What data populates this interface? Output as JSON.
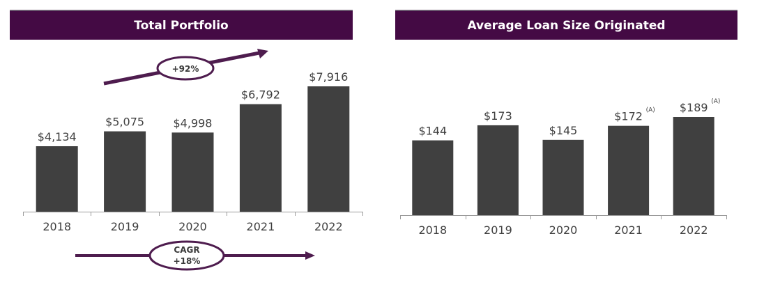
{
  "colors": {
    "title_bg": "#440a44",
    "bar": "#404040",
    "accent": "#4e1c4e",
    "axis": "#9a9a9a"
  },
  "chart_data": [
    {
      "type": "bar",
      "title": "Total Portfolio",
      "categories": [
        "2018",
        "2019",
        "2020",
        "2021",
        "2022"
      ],
      "values": [
        4134,
        5075,
        4998,
        6792,
        7916
      ],
      "value_labels": [
        "$4,134",
        "$5,075",
        "$4,998",
        "$6,792",
        "$7,916"
      ],
      "annotations": {
        "growth": "+92%",
        "cagr_line1": "CAGR",
        "cagr_line2": "+18%"
      },
      "xlabel": "",
      "ylabel": "",
      "ylim": [
        0,
        8000
      ],
      "grid": false
    },
    {
      "type": "bar",
      "title": "Average Loan Size Originated",
      "categories": [
        "2018",
        "2019",
        "2020",
        "2021",
        "2022"
      ],
      "values": [
        144,
        173,
        145,
        172,
        189
      ],
      "value_labels": [
        "$144",
        "$173",
        "$145",
        "$172",
        "$189"
      ],
      "footnotes": [
        "",
        "",
        "",
        "(A)",
        "(A)"
      ],
      "xlabel": "",
      "ylabel": "",
      "ylim": [
        0,
        190
      ],
      "grid": false
    }
  ]
}
